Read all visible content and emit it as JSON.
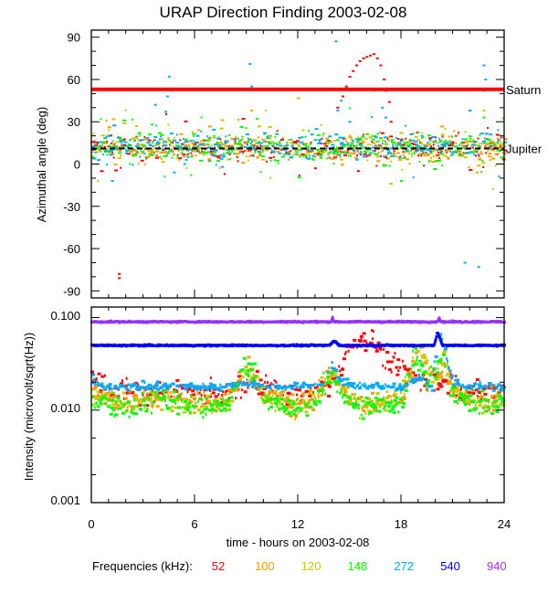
{
  "chart_data": [
    {
      "type": "scatter",
      "title": "URAP Direction Finding  2003-02-08",
      "xlabel": "",
      "ylabel": "Azimuthal angle (deg)",
      "xlim": [
        0,
        24
      ],
      "ylim": [
        -95,
        95
      ],
      "yticks": [
        90,
        60,
        30,
        0,
        -30,
        -60,
        -90
      ],
      "grid": false,
      "reference_lines": [
        {
          "label": "Saturn",
          "value": 53,
          "color": "#ff0000"
        },
        {
          "label": "Jupiter",
          "value": 11,
          "color": "#000000"
        }
      ],
      "series": [
        {
          "name": "52",
          "color": "#ff0000",
          "typical": 11,
          "spread": 4,
          "points": [
            [
              14.3,
              40
            ],
            [
              14.6,
              48
            ],
            [
              14.8,
              55
            ],
            [
              15.0,
              62
            ],
            [
              15.2,
              66
            ],
            [
              15.4,
              70
            ],
            [
              15.6,
              73
            ],
            [
              15.8,
              75
            ],
            [
              16.0,
              76
            ],
            [
              16.2,
              77
            ],
            [
              16.4,
              78
            ],
            [
              16.6,
              75
            ],
            [
              16.8,
              70
            ],
            [
              17.0,
              60
            ],
            [
              17.1,
              52
            ],
            [
              17.3,
              44
            ],
            [
              17.4,
              30
            ],
            [
              1.6,
              -78
            ],
            [
              1.6,
              -81
            ],
            [
              15.5,
              -5
            ],
            [
              13,
              -3
            ]
          ]
        },
        {
          "name": "100",
          "color": "#ff9900",
          "typical": 11,
          "spread": 4,
          "points": [
            [
              22.4,
              -6
            ],
            [
              9.3,
              38
            ],
            [
              4,
              22
            ],
            [
              6.2,
              24
            ]
          ]
        },
        {
          "name": "120",
          "color": "#c8c800",
          "typical": 12,
          "spread": 5,
          "points": [
            [
              22.8,
              38
            ],
            [
              15,
              20
            ],
            [
              2.6,
              27
            ],
            [
              12.3,
              24
            ]
          ]
        },
        {
          "name": "148",
          "color": "#00ff00",
          "typical": 12,
          "spread": 5,
          "points": [
            [
              18,
              -12
            ],
            [
              22.8,
              33
            ],
            [
              9.6,
              32
            ],
            [
              16.4,
              52
            ],
            [
              3.5,
              28
            ]
          ]
        },
        {
          "name": "272",
          "color": "#00aaff",
          "typical": 13,
          "spread": 4,
          "points": [
            [
              4.5,
              62
            ],
            [
              4.4,
              48
            ],
            [
              3.7,
              42
            ],
            [
              4.3,
              37
            ],
            [
              9.2,
              71
            ],
            [
              9.3,
              55
            ],
            [
              14.2,
              87
            ],
            [
              14.5,
              45
            ],
            [
              14.3,
              38
            ],
            [
              15.0,
              30
            ],
            [
              16.9,
              40
            ],
            [
              17.1,
              33
            ],
            [
              19.2,
              20
            ],
            [
              22.8,
              70
            ],
            [
              22.9,
              60
            ],
            [
              22.8,
              52
            ],
            [
              21.7,
              -70
            ],
            [
              22.5,
              -73
            ],
            [
              1.2,
              -12
            ],
            [
              4.8,
              -6
            ],
            [
              5.5,
              3
            ],
            [
              5.4,
              0
            ],
            [
              5.6,
              5
            ],
            [
              7.6,
              -2
            ],
            [
              17.9,
              5
            ]
          ]
        }
      ]
    },
    {
      "type": "scatter",
      "xlabel": "time - hours on 2003-02-08",
      "ylabel": "Intensity (microvolt/sqrt(Hz))",
      "yscale": "log",
      "xlim": [
        0,
        24
      ],
      "ylim": [
        0.001,
        0.13
      ],
      "xticks": [
        "0",
        "6",
        "12",
        "18",
        "24"
      ],
      "yticks": [
        "0.100",
        "0.010",
        "0.001"
      ],
      "grid": false,
      "series": [
        {
          "name": "52",
          "color": "#ff0000",
          "points": [
            [
              0,
              0.022
            ],
            [
              1,
              0.017
            ],
            [
              2,
              0.016
            ],
            [
              3,
              0.015
            ],
            [
              4,
              0.016
            ],
            [
              5,
              0.016
            ],
            [
              6,
              0.015
            ],
            [
              7,
              0.015
            ],
            [
              8,
              0.016
            ],
            [
              9,
              0.018
            ],
            [
              10,
              0.02
            ],
            [
              11,
              0.016
            ],
            [
              12,
              0.015
            ],
            [
              13,
              0.015
            ],
            [
              14,
              0.02
            ],
            [
              14.8,
              0.04
            ],
            [
              15.3,
              0.055
            ],
            [
              15.8,
              0.062
            ],
            [
              16.3,
              0.058
            ],
            [
              16.8,
              0.045
            ],
            [
              17.3,
              0.034
            ],
            [
              18,
              0.028
            ],
            [
              19,
              0.022
            ],
            [
              20,
              0.02
            ],
            [
              21,
              0.02
            ],
            [
              22,
              0.016
            ],
            [
              23,
              0.015
            ],
            [
              24,
              0.016
            ]
          ]
        },
        {
          "name": "100",
          "color": "#ff9900",
          "points": [
            [
              0,
              0.016
            ],
            [
              1,
              0.013
            ],
            [
              2,
              0.012
            ],
            [
              3,
              0.013
            ],
            [
              4,
              0.014
            ],
            [
              5,
              0.013
            ],
            [
              6,
              0.012
            ],
            [
              7,
              0.012
            ],
            [
              8,
              0.013
            ],
            [
              9,
              0.03
            ],
            [
              10,
              0.015
            ],
            [
              11,
              0.012
            ],
            [
              12,
              0.011
            ],
            [
              13,
              0.013
            ],
            [
              14,
              0.025
            ],
            [
              15,
              0.013
            ],
            [
              16,
              0.011
            ],
            [
              17,
              0.012
            ],
            [
              18,
              0.013
            ],
            [
              19,
              0.045
            ],
            [
              20,
              0.02
            ],
            [
              20.5,
              0.035
            ],
            [
              21,
              0.016
            ],
            [
              22,
              0.012
            ],
            [
              23,
              0.012
            ],
            [
              24,
              0.013
            ]
          ]
        },
        {
          "name": "120",
          "color": "#c8c800",
          "points": [
            [
              0,
              0.015
            ],
            [
              1,
              0.013
            ],
            [
              2,
              0.012
            ],
            [
              3,
              0.013
            ],
            [
              4,
              0.014
            ],
            [
              5,
              0.013
            ],
            [
              6,
              0.012
            ],
            [
              7,
              0.012
            ],
            [
              8,
              0.013
            ],
            [
              9,
              0.03
            ],
            [
              10,
              0.015
            ],
            [
              11,
              0.012
            ],
            [
              12,
              0.011
            ],
            [
              13,
              0.013
            ],
            [
              14,
              0.026
            ],
            [
              15,
              0.013
            ],
            [
              16,
              0.011
            ],
            [
              17,
              0.012
            ],
            [
              18,
              0.014
            ],
            [
              19,
              0.05
            ],
            [
              20,
              0.02
            ],
            [
              20.5,
              0.035
            ],
            [
              21,
              0.016
            ],
            [
              22,
              0.013
            ],
            [
              23,
              0.012
            ],
            [
              24,
              0.013
            ]
          ]
        },
        {
          "name": "148",
          "color": "#00ff00",
          "points": [
            [
              0,
              0.014
            ],
            [
              1,
              0.012
            ],
            [
              2,
              0.011
            ],
            [
              3,
              0.012
            ],
            [
              4,
              0.013
            ],
            [
              5,
              0.012
            ],
            [
              6,
              0.011
            ],
            [
              7,
              0.0105
            ],
            [
              8,
              0.012
            ],
            [
              9,
              0.035
            ],
            [
              10,
              0.014
            ],
            [
              11,
              0.011
            ],
            [
              12,
              0.01
            ],
            [
              13,
              0.012
            ],
            [
              14,
              0.025
            ],
            [
              15,
              0.012
            ],
            [
              16,
              0.0105
            ],
            [
              17,
              0.011
            ],
            [
              18,
              0.012
            ],
            [
              18.8,
              0.045
            ],
            [
              19.5,
              0.02
            ],
            [
              20.5,
              0.04
            ],
            [
              21,
              0.015
            ],
            [
              22,
              0.011
            ],
            [
              23,
              0.011
            ],
            [
              24,
              0.012
            ]
          ]
        },
        {
          "name": "272",
          "color": "#00aaff",
          "points": [
            [
              0,
              0.022
            ],
            [
              0.5,
              0.018
            ],
            [
              2,
              0.018
            ],
            [
              4,
              0.018
            ],
            [
              6,
              0.018
            ],
            [
              8,
              0.018
            ],
            [
              9,
              0.02
            ],
            [
              10,
              0.018
            ],
            [
              12,
              0.018
            ],
            [
              13.5,
              0.019
            ],
            [
              14,
              0.03
            ],
            [
              14.5,
              0.02
            ],
            [
              16,
              0.018
            ],
            [
              18,
              0.018
            ],
            [
              19,
              0.022
            ],
            [
              19.8,
              0.018
            ],
            [
              20.2,
              0.08
            ],
            [
              20.6,
              0.04
            ],
            [
              21,
              0.02
            ],
            [
              22,
              0.018
            ],
            [
              24,
              0.018
            ]
          ]
        },
        {
          "name": "540",
          "color": "#0000ff",
          "points": [
            [
              0,
              0.05
            ],
            [
              13.8,
              0.05
            ],
            [
              14.1,
              0.056
            ],
            [
              14.4,
              0.05
            ],
            [
              19.9,
              0.05
            ],
            [
              20.1,
              0.07
            ],
            [
              20.4,
              0.05
            ],
            [
              24,
              0.05
            ]
          ]
        },
        {
          "name": "940",
          "color": "#9933ff",
          "points": [
            [
              0,
              0.09
            ],
            [
              13.9,
              0.09
            ],
            [
              14,
              0.1
            ],
            [
              14.1,
              0.09
            ],
            [
              20.1,
              0.09
            ],
            [
              20.2,
              0.1
            ],
            [
              20.3,
              0.09
            ],
            [
              24,
              0.09
            ]
          ]
        }
      ]
    }
  ],
  "legend": {
    "label": "Frequencies (kHz):",
    "entries": [
      {
        "name": "52",
        "color": "#ff0000"
      },
      {
        "name": "100",
        "color": "#ff9900"
      },
      {
        "name": "120",
        "color": "#c8c800"
      },
      {
        "name": "148",
        "color": "#00ff00"
      },
      {
        "name": "272",
        "color": "#00aaff"
      },
      {
        "name": "540",
        "color": "#0000ff"
      },
      {
        "name": "940",
        "color": "#9933ff"
      }
    ]
  }
}
